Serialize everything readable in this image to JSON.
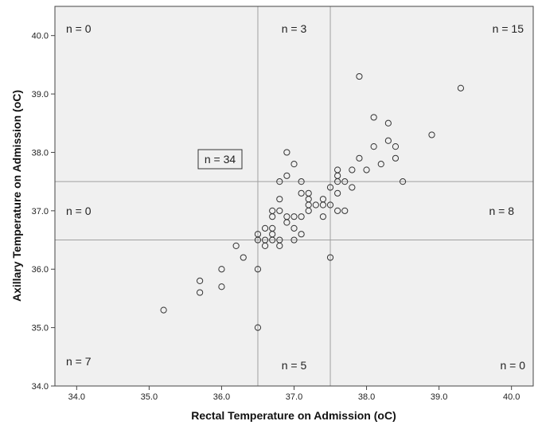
{
  "chart_data": {
    "type": "scatter",
    "xlabel": "Rectal Temperature on Admission (oC)",
    "ylabel": "Axillary Temperature on Admission (oC)",
    "xlim": [
      33.7,
      40.3
    ],
    "ylim": [
      34.0,
      40.5
    ],
    "x_ticks": [
      "34.0",
      "35.0",
      "36.0",
      "37.0",
      "38.0",
      "39.0",
      "40.0"
    ],
    "y_ticks": [
      "34.0",
      "35.0",
      "36.0",
      "37.0",
      "38.0",
      "39.0",
      "40.0"
    ],
    "reference_lines": {
      "x": [
        36.5,
        37.5
      ],
      "y": [
        36.5,
        37.5
      ]
    },
    "grid": false,
    "colors": {
      "plot_background": "#f0f0f0",
      "point_stroke": "#333333",
      "reference_line": "#a0a0a0"
    },
    "region_counts": [
      {
        "label": "n = 0",
        "anchor": "top-left"
      },
      {
        "label": "n = 3",
        "anchor": "top-center"
      },
      {
        "label": "n = 15",
        "anchor": "top-right"
      },
      {
        "label": "n = 0",
        "anchor": "middle-left"
      },
      {
        "label": "n = 8",
        "anchor": "middle-right"
      },
      {
        "label": "n = 7",
        "anchor": "bottom-left"
      },
      {
        "label": "n = 5",
        "anchor": "bottom-center"
      },
      {
        "label": "n = 0",
        "anchor": "bottom-right"
      }
    ],
    "boxed_label": "n = 34",
    "points": [
      [
        35.2,
        35.3
      ],
      [
        35.7,
        35.8
      ],
      [
        35.7,
        35.6
      ],
      [
        36.0,
        36.0
      ],
      [
        36.0,
        35.7
      ],
      [
        36.2,
        36.4
      ],
      [
        36.3,
        36.2
      ],
      [
        36.5,
        36.0
      ],
      [
        36.5,
        35.0
      ],
      [
        36.5,
        36.6
      ],
      [
        36.5,
        36.5
      ],
      [
        36.6,
        36.7
      ],
      [
        36.6,
        36.5
      ],
      [
        36.6,
        36.4
      ],
      [
        36.7,
        37.0
      ],
      [
        36.7,
        36.9
      ],
      [
        36.7,
        36.7
      ],
      [
        36.7,
        36.6
      ],
      [
        36.7,
        36.5
      ],
      [
        36.8,
        37.5
      ],
      [
        36.8,
        37.2
      ],
      [
        36.8,
        37.0
      ],
      [
        36.8,
        36.5
      ],
      [
        36.8,
        36.4
      ],
      [
        36.9,
        38.0
      ],
      [
        36.9,
        37.6
      ],
      [
        36.9,
        36.9
      ],
      [
        36.9,
        36.8
      ],
      [
        37.0,
        37.8
      ],
      [
        37.0,
        36.9
      ],
      [
        37.0,
        36.7
      ],
      [
        37.0,
        36.5
      ],
      [
        37.1,
        37.5
      ],
      [
        37.1,
        37.3
      ],
      [
        37.1,
        36.9
      ],
      [
        37.1,
        36.6
      ],
      [
        37.2,
        37.3
      ],
      [
        37.2,
        37.2
      ],
      [
        37.2,
        37.1
      ],
      [
        37.2,
        37.0
      ],
      [
        37.3,
        37.1
      ],
      [
        37.4,
        37.2
      ],
      [
        37.4,
        37.1
      ],
      [
        37.4,
        36.9
      ],
      [
        37.5,
        37.4
      ],
      [
        37.5,
        37.1
      ],
      [
        37.5,
        36.2
      ],
      [
        37.6,
        37.7
      ],
      [
        37.6,
        37.6
      ],
      [
        37.6,
        37.5
      ],
      [
        37.6,
        37.3
      ],
      [
        37.6,
        37.0
      ],
      [
        37.7,
        37.5
      ],
      [
        37.7,
        37.0
      ],
      [
        37.8,
        37.7
      ],
      [
        37.8,
        37.4
      ],
      [
        37.9,
        39.3
      ],
      [
        37.9,
        37.9
      ],
      [
        38.0,
        37.7
      ],
      [
        38.1,
        38.6
      ],
      [
        38.1,
        38.1
      ],
      [
        38.2,
        37.8
      ],
      [
        38.3,
        38.5
      ],
      [
        38.3,
        38.2
      ],
      [
        38.4,
        38.1
      ],
      [
        38.4,
        37.9
      ],
      [
        38.5,
        37.5
      ],
      [
        38.9,
        38.3
      ],
      [
        39.3,
        39.1
      ]
    ]
  }
}
